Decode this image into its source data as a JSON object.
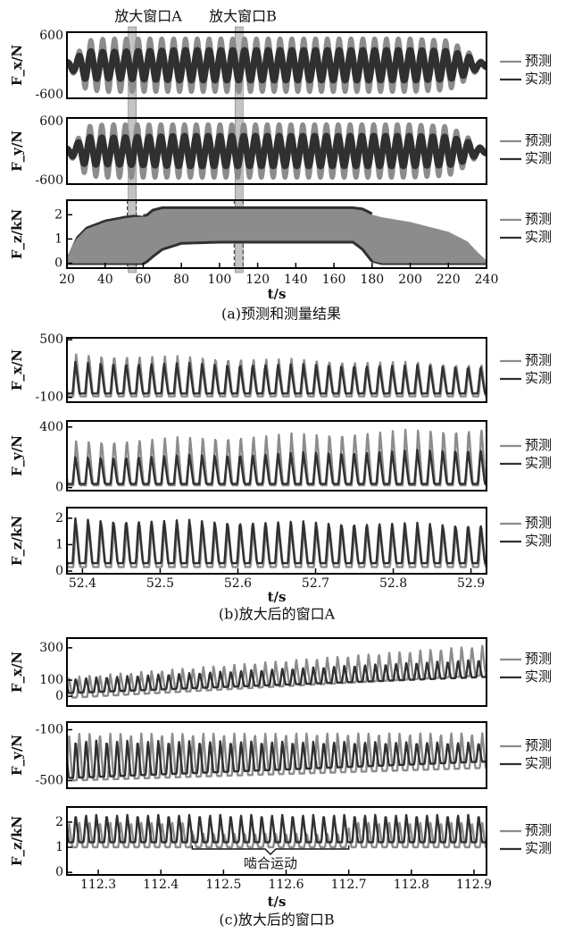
{
  "chart_data": [
    {
      "type": "line",
      "caption": "(a)预测和测量结果",
      "xlabel": "t/s",
      "xlim": [
        20,
        240
      ],
      "xticks": [
        20,
        40,
        60,
        80,
        100,
        120,
        140,
        160,
        180,
        200,
        220,
        240
      ],
      "window_labels": [
        "放大窗口A",
        "放大窗口B"
      ],
      "window_centers": [
        54,
        110
      ],
      "subplots": [
        {
          "ylabel": "F_x/N",
          "ytick_labels": [
            "600",
            "-600"
          ],
          "ylim": [
            -700,
            700
          ],
          "legend": [
            "预测",
            "实测"
          ],
          "envelope": {
            "t": [
              20,
              25,
              30,
              40,
              50,
              60,
              70,
              80,
              100,
              120,
              140,
              160,
              180,
              200,
              220,
              230,
              235,
              240
            ],
            "predicted_amplitude": [
              80,
              220,
              520,
              560,
              560,
              560,
              560,
              560,
              560,
              560,
              560,
              560,
              560,
              560,
              520,
              300,
              120,
              60
            ],
            "measured_amplitude": [
              50,
              160,
              300,
              280,
              290,
              300,
              310,
              320,
              320,
              320,
              320,
              320,
              320,
              320,
              300,
              200,
              80,
              40
            ],
            "oscillation_period_s": 6.2
          }
        },
        {
          "ylabel": "F_y/N",
          "ytick_labels": [
            "600",
            "-600"
          ],
          "ylim": [
            -700,
            700
          ],
          "legend": [
            "预测",
            "实测"
          ],
          "envelope": {
            "t": [
              20,
              25,
              30,
              40,
              50,
              60,
              70,
              80,
              100,
              120,
              140,
              160,
              180,
              200,
              220,
              230,
              235,
              240
            ],
            "predicted_amplitude": [
              80,
              220,
              520,
              560,
              560,
              560,
              560,
              560,
              560,
              560,
              560,
              560,
              560,
              560,
              520,
              300,
              120,
              60
            ],
            "measured_amplitude": [
              50,
              160,
              300,
              280,
              290,
              300,
              310,
              320,
              320,
              320,
              320,
              320,
              320,
              320,
              300,
              200,
              80,
              40
            ],
            "oscillation_period_s": 6.2
          }
        },
        {
          "ylabel": "F_z/kN",
          "yticks": [
            0,
            1,
            2
          ],
          "ylim": [
            -0.2,
            2.6
          ],
          "legend": [
            "预测",
            "实测"
          ],
          "band": {
            "t": [
              20,
              22,
              25,
              30,
              40,
              50,
              55,
              60,
              62,
              65,
              70,
              80,
              100,
              120,
              160,
              170,
              175,
              180,
              185,
              200,
              220,
              230,
              236,
              240
            ],
            "upper": [
              0.2,
              0.6,
              1.0,
              1.4,
              1.7,
              1.85,
              1.9,
              1.92,
              1.95,
              2.15,
              2.25,
              2.25,
              2.25,
              2.25,
              2.25,
              2.25,
              2.2,
              2.0,
              1.9,
              1.7,
              1.3,
              0.9,
              0.4,
              0.1
            ],
            "lower": [
              0.0,
              0.0,
              0.0,
              0.0,
              0.0,
              0.0,
              0.0,
              0.0,
              0.1,
              0.3,
              0.6,
              0.85,
              0.9,
              0.9,
              0.9,
              0.9,
              0.6,
              0.1,
              0.0,
              0.0,
              0.0,
              0.0,
              0.0,
              0.0
            ]
          },
          "measured_edge": {
            "t": [
              20,
              25,
              30,
              40,
              50,
              55,
              60,
              65,
              70,
              100,
              160,
              175,
              180,
              200,
              220,
              230,
              240
            ],
            "upper": [
              0.25,
              1.1,
              1.5,
              1.8,
              1.95,
              2.0,
              1.95,
              2.2,
              2.3,
              2.3,
              2.3,
              2.2,
              1.95,
              1.65,
              1.25,
              0.85,
              0.1
            ]
          }
        }
      ]
    },
    {
      "type": "line",
      "caption": "(b)放大后的窗口A",
      "xlabel": "t/s",
      "xlim": [
        52.38,
        52.92
      ],
      "xticks": [
        52.4,
        52.5,
        52.6,
        52.7,
        52.8,
        52.9
      ],
      "cycle_period_s": 0.0163,
      "subplots": [
        {
          "ylabel": "F_x/N",
          "yticks": [
            500,
            -100
          ],
          "ylim": [
            -150,
            520
          ],
          "legend": [
            "预测",
            "实测"
          ],
          "predicted": {
            "max": 360,
            "min": -90,
            "max_end": 250
          },
          "measured": {
            "max": 270,
            "min": -60,
            "max_end": 230
          }
        },
        {
          "ylabel": "F_y/N",
          "yticks": [
            400,
            0
          ],
          "ylim": [
            -20,
            440
          ],
          "legend": [
            "预测",
            "实测"
          ],
          "predicted": {
            "max": 310,
            "min": 15,
            "max_end": 400
          },
          "measured": {
            "max": 200,
            "min": 25,
            "max_end": 260
          }
        },
        {
          "ylabel": "F_z/kN",
          "yticks": [
            2,
            1,
            0
          ],
          "ylim": [
            -0.1,
            2.4
          ],
          "legend": [
            "预测",
            "实测"
          ],
          "predicted": {
            "max": 1.85,
            "min": 0.15,
            "max_end": 1.7
          },
          "measured": {
            "max": 2.0,
            "min": 0.3,
            "max_end": 1.8
          }
        }
      ]
    },
    {
      "type": "line",
      "caption": "(c)放大后的窗口B",
      "xlabel": "t/s",
      "xlim": [
        112.25,
        112.92
      ],
      "xticks": [
        112.3,
        112.4,
        112.5,
        112.6,
        112.7,
        112.8,
        112.9
      ],
      "cycle_period_s": 0.0165,
      "annotation": {
        "text": "啮合运动",
        "span": [
          112.45,
          112.7
        ]
      },
      "subplots": [
        {
          "ylabel": "F_x/N",
          "yticks": [
            300,
            100,
            0
          ],
          "ylim": [
            -60,
            360
          ],
          "legend": [
            "预测",
            "实测"
          ],
          "predicted": {
            "start_max": 120,
            "start_min": -10,
            "end_max": 320,
            "end_min": 130
          },
          "measured": {
            "start_max": 110,
            "start_min": 20,
            "end_max": 230,
            "end_min": 120
          }
        },
        {
          "ylabel": "F_y/N",
          "yticks": [
            -100,
            -500
          ],
          "ylim": [
            -560,
            -40
          ],
          "legend": [
            "预测",
            "实测"
          ],
          "predicted": {
            "start_max": -120,
            "start_min": -500,
            "end_max": -120,
            "end_min": -400
          },
          "measured": {
            "start_max": -180,
            "start_min": -480,
            "end_max": -200,
            "end_min": -350
          }
        },
        {
          "ylabel": "F_z/kN",
          "yticks": [
            2,
            1,
            0
          ],
          "ylim": [
            -0.1,
            2.6
          ],
          "legend": [
            "预测",
            "实测"
          ],
          "predicted": {
            "max": 2.0,
            "min": 1.0
          },
          "measured": {
            "max": 2.3,
            "min": 1.2
          }
        }
      ]
    }
  ],
  "colors": {
    "predicted": "#8c8c8c",
    "measured": "#303030",
    "window": "#c4c4c4"
  }
}
